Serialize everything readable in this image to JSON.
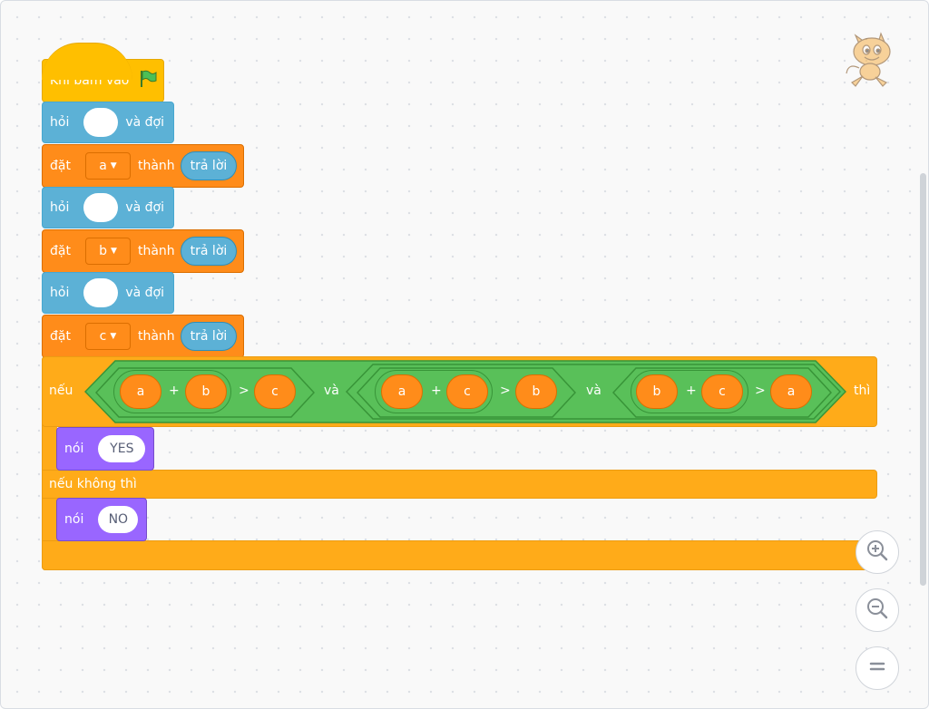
{
  "event": {
    "label": "Khi bấm vào",
    "icon": "green-flag-icon"
  },
  "ask1": {
    "label": "hỏi",
    "suffix": "và đợi"
  },
  "set1": {
    "label": "đặt",
    "var": "a",
    "to": "thành",
    "reporter": "trả lời"
  },
  "ask2": {
    "label": "hỏi",
    "suffix": "và đợi"
  },
  "set2": {
    "label": "đặt",
    "var": "b",
    "to": "thành",
    "reporter": "trả lời"
  },
  "ask3": {
    "label": "hỏi",
    "suffix": "và đợi"
  },
  "set3": {
    "label": "đặt",
    "var": "c",
    "to": "thành",
    "reporter": "trả lời"
  },
  "if_block": {
    "if_label": "nếu",
    "then_label": "thì",
    "else_label": "nếu không thì",
    "and_label": "và",
    "plus": "+",
    "gt": ">",
    "cond1": {
      "a": "a",
      "b": "b",
      "c": "c"
    },
    "cond2": {
      "a": "a",
      "b": "c",
      "c": "b"
    },
    "cond3": {
      "a": "b",
      "b": "c",
      "c": "a"
    }
  },
  "say_yes": {
    "label": "nói",
    "value": "YES"
  },
  "say_no": {
    "label": "nói",
    "value": "NO"
  },
  "zoom": {
    "in_icon": "zoom-in-icon",
    "out_icon": "zoom-out-icon",
    "reset_icon": "zoom-reset-icon"
  },
  "sprite": {
    "icon": "scratch-cat-icon"
  },
  "colors": {
    "events": "#ffbf00",
    "sensing": "#5cb1d6",
    "variables": "#ff8c1a",
    "control": "#ffab19",
    "operators": "#59c059",
    "looks": "#9966ff"
  }
}
